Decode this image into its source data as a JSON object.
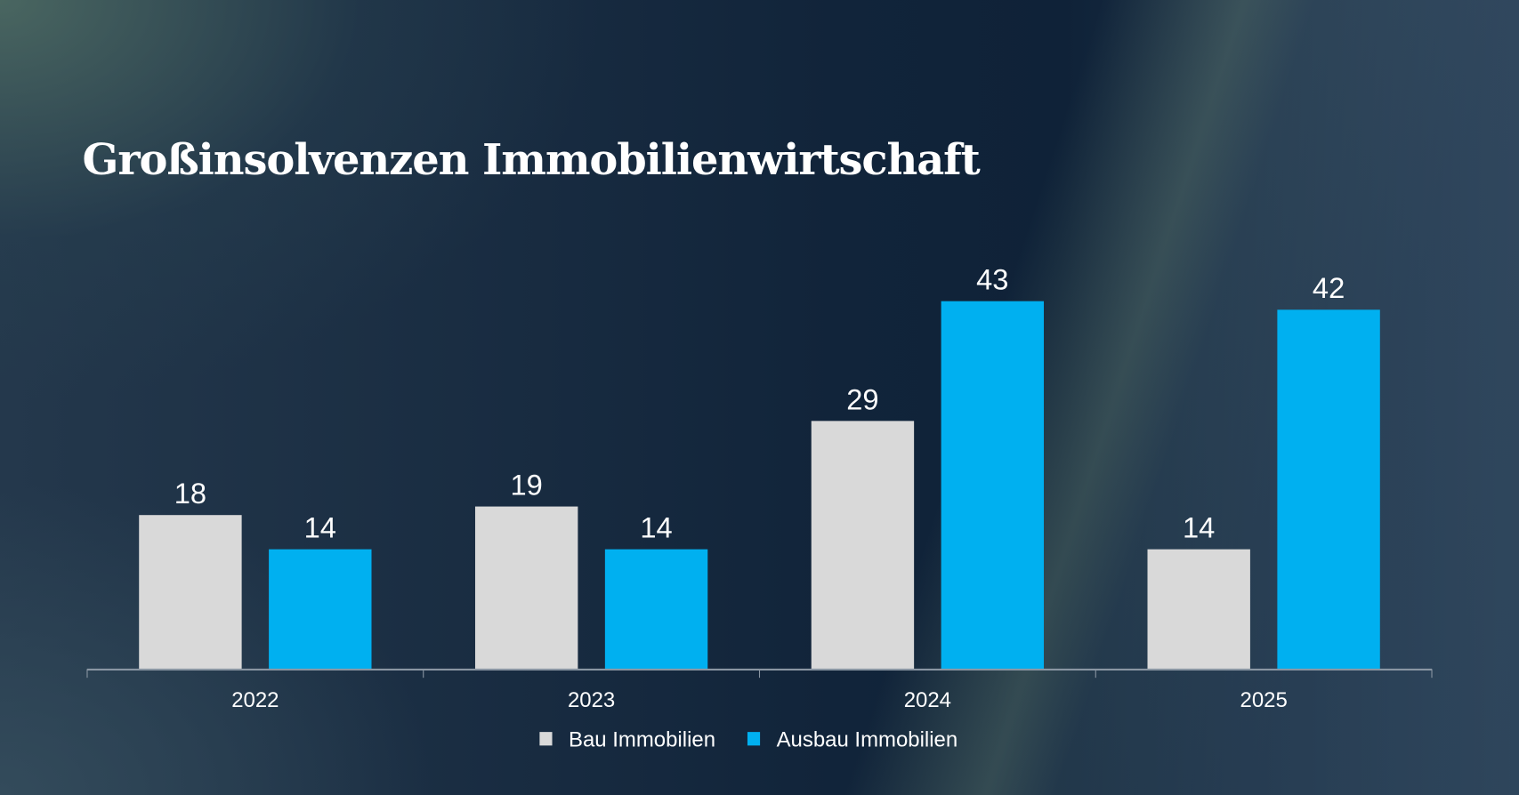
{
  "chart_data": {
    "type": "bar",
    "title": "Großinsolvenzen Immobilienwirtschaft",
    "categories": [
      "2022",
      "2023",
      "2024",
      "2025"
    ],
    "series": [
      {
        "name": "Bau Immobilien",
        "color": "#d9d9d9",
        "values": [
          18,
          19,
          29,
          14
        ]
      },
      {
        "name": "Ausbau Immobilien",
        "color": "#00b0f0",
        "values": [
          14,
          14,
          43,
          42
        ]
      }
    ],
    "xlabel": "",
    "ylabel": "",
    "ylim": [
      0,
      43
    ],
    "grid": false,
    "legend": "bottom",
    "data_labels": true
  }
}
